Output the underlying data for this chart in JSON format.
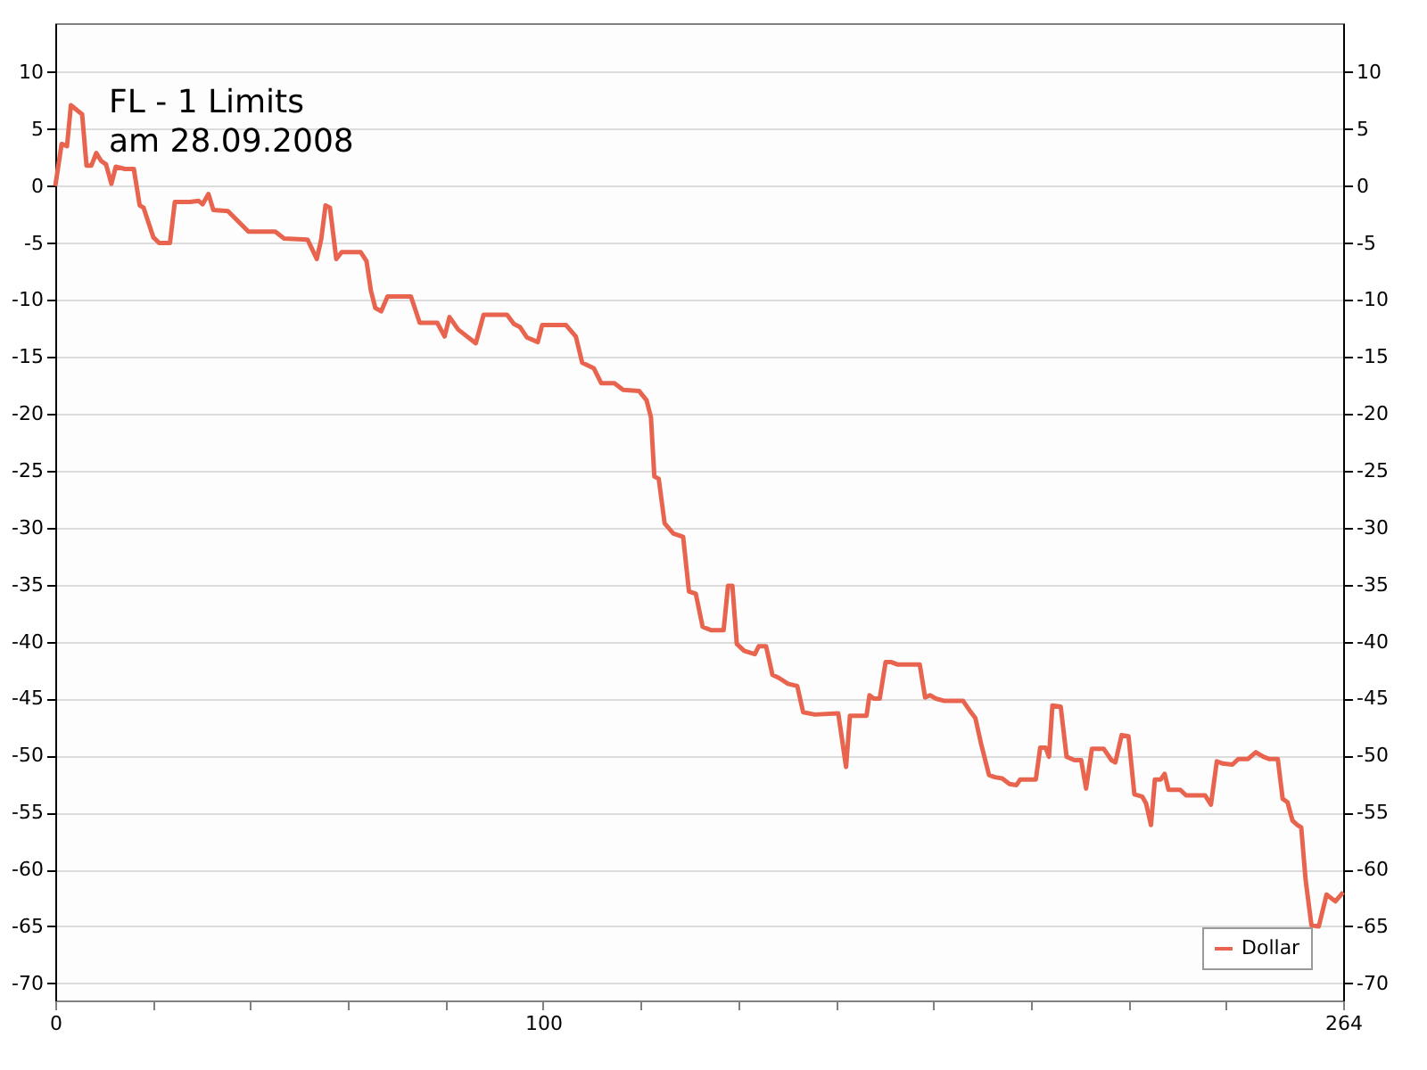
{
  "chart_data": {
    "type": "line",
    "title": "FL  - 1 Limits",
    "subtitle": "am 28.09.2008",
    "x": [
      0,
      1.3,
      2.4,
      3.2,
      5.5,
      6.4,
      7.4,
      8.4,
      9.4,
      10.4,
      11.5,
      12.4,
      14.3,
      16.1,
      17.3,
      18.1,
      20.1,
      21.3,
      23.5,
      24.5,
      27.6,
      29.4,
      30.2,
      31.4,
      32.4,
      35.4,
      39.6,
      45.1,
      46.9,
      51.7,
      53.6,
      54.5,
      55.4,
      56.3,
      57.6,
      58.7,
      62.6,
      63.8,
      64.7,
      65.6,
      66.8,
      68.1,
      72.9,
      74.7,
      78.3,
      79.8,
      80.8,
      82.6,
      86.2,
      87.8,
      92.6,
      94,
      95.3,
      96.7,
      98.9,
      99.8,
      104.7,
      106.7,
      108,
      110.4,
      111.9,
      114.6,
      116.4,
      119.7,
      121.2,
      122.1,
      122.8,
      123.7,
      124.9,
      126.7,
      128.7,
      129.9,
      131.3,
      132.7,
      134.5,
      137,
      137.9,
      138.8,
      139.7,
      141.2,
      143.4,
      144.2,
      145.7,
      147,
      148.4,
      150.2,
      152.1,
      153.3,
      155.7,
      160.5,
      162.1,
      162.9,
      166.3,
      166.9,
      167.8,
      169,
      170.2,
      171.4,
      172.6,
      177.2,
      178.3,
      179.3,
      180.5,
      182.3,
      186.1,
      187.7,
      188.6,
      189.8,
      191.4,
      192.6,
      194.1,
      195.6,
      197,
      197.8,
      201,
      201.9,
      203,
      203.7,
      204.4,
      206.1,
      207.3,
      208.9,
      210.3,
      211.3,
      212.5,
      214.9,
      216.5,
      217.3,
      218.6,
      220,
      221.2,
      222.8,
      223.6,
      224.6,
      225.4,
      226.6,
      227.4,
      228.2,
      230.6,
      231.8,
      235.7,
      236.9,
      238.1,
      239.3,
      241.3,
      242.5,
      244.5,
      246.1,
      247.6,
      248.8,
      250.6,
      251.6,
      252.6,
      253.6,
      254.6,
      255.4,
      256.3,
      257.5,
      259,
      260.6,
      262.4,
      264
    ],
    "series": [
      {
        "name": "Dollar",
        "color": "#e8644e",
        "values": [
          0,
          3.7,
          3.5,
          7.1,
          6.3,
          1.8,
          1.8,
          2.9,
          2.2,
          1.9,
          0.2,
          1.7,
          1.5,
          1.5,
          -1.7,
          -1.9,
          -4.5,
          -5,
          -5,
          -1.4,
          -1.4,
          -1.3,
          -1.6,
          -0.7,
          -2.1,
          -2.2,
          -4,
          -4,
          -4.6,
          -4.7,
          -6.4,
          -4.7,
          -1.7,
          -1.9,
          -6.4,
          -5.8,
          -5.8,
          -6.6,
          -9.2,
          -10.7,
          -11,
          -9.7,
          -9.7,
          -12,
          -12,
          -13.2,
          -11.5,
          -12.6,
          -13.8,
          -11.3,
          -11.3,
          -12.1,
          -12.4,
          -13.3,
          -13.7,
          -12.2,
          -12.2,
          -13.2,
          -15.5,
          -16,
          -17.3,
          -17.3,
          -17.9,
          -18,
          -18.8,
          -20.3,
          -25.5,
          -25.7,
          -29.6,
          -30.5,
          -30.8,
          -35.6,
          -35.8,
          -38.7,
          -39,
          -39,
          -35.1,
          -35.1,
          -40.2,
          -40.8,
          -41.1,
          -40.4,
          -40.4,
          -42.9,
          -43.2,
          -43.7,
          -43.9,
          -46.2,
          -46.4,
          -46.3,
          -51,
          -46.5,
          -46.5,
          -44.7,
          -45,
          -45,
          -41.8,
          -41.8,
          -42,
          -42,
          -44.9,
          -44.7,
          -45,
          -45.2,
          -45.2,
          -46.2,
          -46.7,
          -49,
          -51.7,
          -51.9,
          -52,
          -52.5,
          -52.6,
          -52.1,
          -52.1,
          -49.3,
          -49.3,
          -50.1,
          -45.6,
          -45.7,
          -50.1,
          -50.4,
          -50.4,
          -52.9,
          -49.4,
          -49.4,
          -50.4,
          -50.6,
          -48.2,
          -48.3,
          -53.4,
          -53.6,
          -54.2,
          -56.1,
          -52.1,
          -52.1,
          -51.6,
          -53,
          -53,
          -53.5,
          -53.5,
          -54.3,
          -50.5,
          -50.7,
          -50.8,
          -50.3,
          -50.3,
          -49.7,
          -50.1,
          -50.3,
          -50.3,
          -53.8,
          -54.1,
          -55.7,
          -56.1,
          -56.3,
          -60.9,
          -64.9,
          -65,
          -62.2,
          -62.8,
          -62
        ]
      }
    ],
    "xlim": [
      0,
      264
    ],
    "xticks": [
      0,
      {
        "value": 20,
        "label": null
      },
      {
        "value": 40,
        "label": null
      },
      {
        "value": 60,
        "label": null
      },
      {
        "value": 80,
        "label": null
      },
      100,
      {
        "value": 120,
        "label": null
      },
      {
        "value": 140,
        "label": null
      },
      {
        "value": 160,
        "label": null
      },
      {
        "value": 180,
        "label": null
      },
      {
        "value": 200,
        "label": null
      },
      {
        "value": 220,
        "label": null
      },
      {
        "value": 240,
        "label": null
      },
      264
    ],
    "ylim": [
      -71.5,
      14.3
    ],
    "yticks": [
      -70,
      -65,
      -60,
      -55,
      -50,
      -45,
      -40,
      -35,
      -30,
      -25,
      -20,
      -15,
      -10,
      -5,
      0,
      5,
      10
    ],
    "y2lim": [
      -71.5,
      14.3
    ],
    "y2ticks": [
      -70,
      -65,
      -60,
      -55,
      -50,
      -45,
      -40,
      -35,
      -30,
      -25,
      -20,
      -15,
      -10,
      -5,
      0,
      5,
      10
    ],
    "grid": "y",
    "legend": "bottom right",
    "marker": "none",
    "line_style": "solid"
  }
}
